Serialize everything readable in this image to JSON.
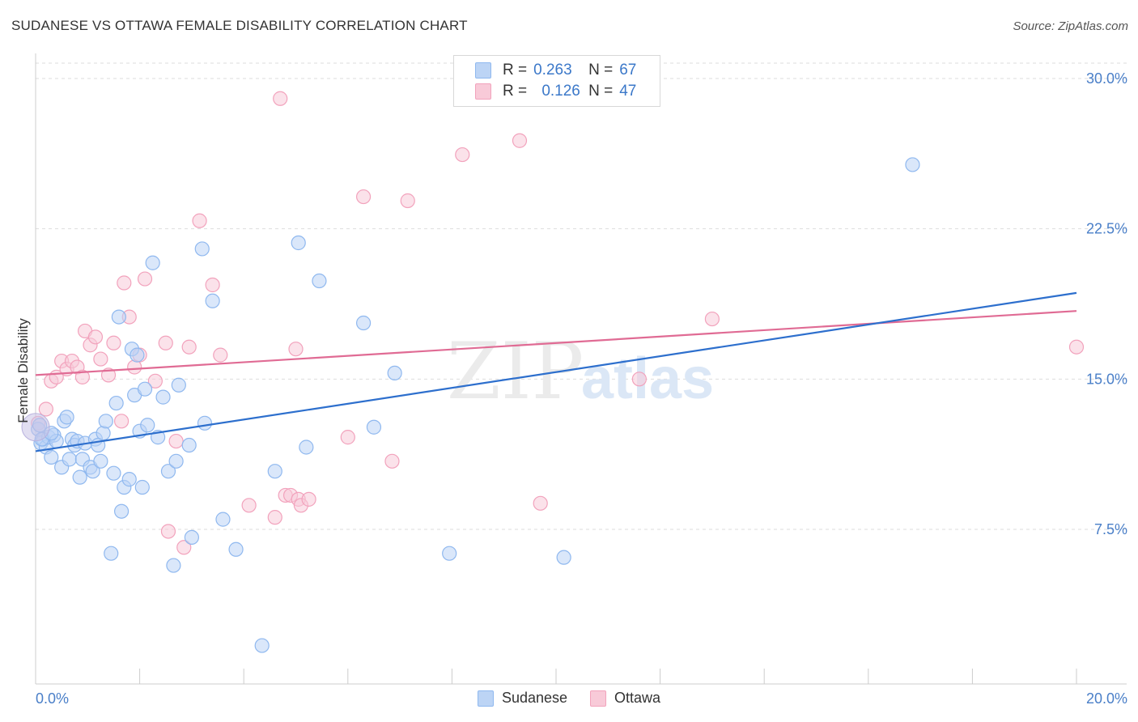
{
  "title": "SUDANESE VS OTTAWA FEMALE DISABILITY CORRELATION CHART",
  "source": "Source: ZipAtlas.com",
  "watermark": {
    "zip": "ZIP",
    "atlas": "atlas"
  },
  "legend": [
    {
      "r_label": "R =",
      "r_value": "0.263",
      "n_label": "N =",
      "n_value": "67",
      "color": "#8fb8ef",
      "fill": "#bcd4f5"
    },
    {
      "r_label": "R =",
      "r_value": "0.126",
      "n_label": "N =",
      "n_value": "47",
      "color": "#f2a2bc",
      "fill": "#f8cad8"
    }
  ],
  "colors": {
    "sudanese_line": "#2d6fcd",
    "ottawa_line": "#e06b94",
    "axis_text": "#4a7fc8",
    "grid": "#dddddd"
  },
  "chart_data": {
    "type": "scatter",
    "xlabel": "",
    "ylabel": "Female Disability",
    "xlim": [
      0,
      20
    ],
    "ylim": [
      0,
      31
    ],
    "x_tick_labels": [
      "0.0%",
      "20.0%"
    ],
    "y_ticks": [
      7.5,
      15.0,
      22.5,
      30.0
    ],
    "y_tick_labels": [
      "7.5%",
      "15.0%",
      "22.5%",
      "30.0%"
    ],
    "grid": true,
    "legend_position": "bottom",
    "series": [
      {
        "name": "Sudanese",
        "trend": [
          [
            0.0,
            11.4
          ],
          [
            20.0,
            19.3
          ]
        ],
        "points": [
          [
            0.05,
            12.5
          ],
          [
            0.1,
            11.8
          ],
          [
            0.15,
            12.0
          ],
          [
            0.2,
            11.6
          ],
          [
            0.25,
            12.1
          ],
          [
            0.3,
            11.1
          ],
          [
            0.35,
            12.2
          ],
          [
            0.4,
            11.9
          ],
          [
            0.5,
            10.6
          ],
          [
            0.55,
            12.9
          ],
          [
            0.6,
            13.1
          ],
          [
            0.65,
            11.0
          ],
          [
            0.7,
            12.0
          ],
          [
            0.75,
            11.7
          ],
          [
            0.8,
            11.9
          ],
          [
            0.85,
            10.1
          ],
          [
            0.9,
            11.0
          ],
          [
            0.95,
            11.8
          ],
          [
            1.05,
            10.6
          ],
          [
            1.1,
            10.4
          ],
          [
            1.15,
            12.0
          ],
          [
            1.2,
            11.7
          ],
          [
            1.25,
            10.9
          ],
          [
            1.3,
            12.3
          ],
          [
            1.35,
            12.9
          ],
          [
            1.45,
            6.3
          ],
          [
            1.5,
            10.3
          ],
          [
            1.55,
            13.8
          ],
          [
            1.6,
            18.1
          ],
          [
            1.65,
            8.4
          ],
          [
            1.7,
            9.6
          ],
          [
            1.8,
            10.0
          ],
          [
            1.85,
            16.5
          ],
          [
            1.9,
            14.2
          ],
          [
            1.95,
            16.2
          ],
          [
            2.0,
            12.4
          ],
          [
            2.05,
            9.6
          ],
          [
            2.1,
            14.5
          ],
          [
            2.15,
            12.7
          ],
          [
            2.25,
            20.8
          ],
          [
            2.35,
            12.1
          ],
          [
            2.45,
            14.1
          ],
          [
            2.55,
            10.4
          ],
          [
            2.65,
            5.7
          ],
          [
            2.7,
            10.9
          ],
          [
            2.75,
            14.7
          ],
          [
            2.95,
            11.7
          ],
          [
            3.0,
            7.1
          ],
          [
            3.2,
            21.5
          ],
          [
            3.25,
            12.8
          ],
          [
            3.4,
            18.9
          ],
          [
            3.6,
            8.0
          ],
          [
            3.85,
            6.5
          ],
          [
            4.35,
            1.7
          ],
          [
            4.6,
            10.4
          ],
          [
            5.05,
            21.8
          ],
          [
            5.2,
            11.6
          ],
          [
            5.45,
            19.9
          ],
          [
            6.3,
            17.8
          ],
          [
            6.5,
            12.6
          ],
          [
            6.9,
            15.3
          ],
          [
            7.95,
            6.3
          ],
          [
            10.15,
            6.1
          ],
          [
            16.85,
            25.7
          ],
          [
            0.08,
            12.7
          ],
          [
            0.12,
            12.0
          ],
          [
            0.3,
            12.3
          ]
        ]
      },
      {
        "name": "Ottawa",
        "trend": [
          [
            0.0,
            15.2
          ],
          [
            20.0,
            18.4
          ]
        ],
        "points": [
          [
            0.05,
            12.8
          ],
          [
            0.2,
            13.5
          ],
          [
            0.3,
            14.9
          ],
          [
            0.4,
            15.1
          ],
          [
            0.5,
            15.9
          ],
          [
            0.6,
            15.5
          ],
          [
            0.7,
            15.9
          ],
          [
            0.8,
            15.6
          ],
          [
            0.9,
            15.1
          ],
          [
            0.95,
            17.4
          ],
          [
            1.05,
            16.7
          ],
          [
            1.15,
            17.1
          ],
          [
            1.25,
            16.0
          ],
          [
            1.4,
            15.2
          ],
          [
            1.5,
            16.8
          ],
          [
            1.65,
            12.9
          ],
          [
            1.7,
            19.8
          ],
          [
            1.8,
            18.1
          ],
          [
            1.9,
            15.6
          ],
          [
            2.0,
            16.2
          ],
          [
            2.1,
            20.0
          ],
          [
            2.3,
            14.9
          ],
          [
            2.5,
            16.8
          ],
          [
            2.55,
            7.4
          ],
          [
            2.7,
            11.9
          ],
          [
            2.85,
            6.6
          ],
          [
            2.95,
            16.6
          ],
          [
            3.15,
            22.9
          ],
          [
            3.4,
            19.7
          ],
          [
            3.55,
            16.2
          ],
          [
            4.1,
            8.7
          ],
          [
            4.6,
            8.1
          ],
          [
            4.8,
            9.2
          ],
          [
            4.9,
            9.2
          ],
          [
            5.0,
            16.5
          ],
          [
            5.05,
            9.0
          ],
          [
            5.1,
            8.7
          ],
          [
            5.25,
            9.0
          ],
          [
            6.0,
            12.1
          ],
          [
            6.3,
            24.1
          ],
          [
            6.85,
            10.9
          ],
          [
            7.15,
            23.9
          ],
          [
            8.2,
            26.2
          ],
          [
            9.3,
            26.9
          ],
          [
            9.7,
            8.8
          ],
          [
            11.6,
            15.0
          ],
          [
            13.0,
            18.0
          ]
        ]
      }
    ],
    "extra_ottawa": [
      [
        4.7,
        29.0
      ],
      [
        20.0,
        16.6
      ]
    ]
  }
}
